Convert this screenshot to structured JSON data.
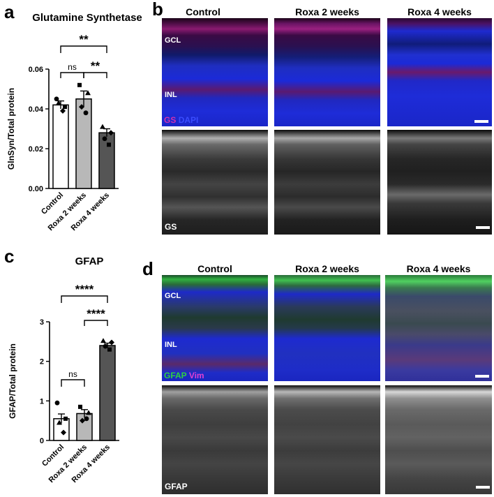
{
  "panels": {
    "a": {
      "letter": "a",
      "title": "Glutamine Synthetase"
    },
    "b": {
      "letter": "b"
    },
    "c": {
      "letter": "c",
      "title": "GFAP"
    },
    "d": {
      "letter": "d"
    }
  },
  "columns": [
    "Control",
    "Roxa 2 weeks",
    "Roxa 4 weeks"
  ],
  "layer_labels": {
    "gcl": "GCL",
    "inl": "INL"
  },
  "stains_b": {
    "gs": "GS",
    "dapi": "DAPI",
    "gs_gray": "GS"
  },
  "stains_d": {
    "gfap": "GFAP",
    "vim": "Vim",
    "gfap_gray": "GFAP"
  },
  "colors": {
    "gs": "#c02090",
    "dapi": "#2a3cff",
    "gfap": "#22c02a",
    "vim": "#d030c0",
    "bar_control": "#ffffff",
    "bar_2wk": "#b8b8b8",
    "bar_4wk": "#555555"
  },
  "chart_data": [
    {
      "type": "bar",
      "title": "Glutamine Synthetase",
      "xlabel": "",
      "ylabel": "GlnSyn/Total protein",
      "categories": [
        "Control",
        "Roxa 2 weeks",
        "Roxa 4 weeks"
      ],
      "values": [
        0.042,
        0.045,
        0.028
      ],
      "errors": [
        0.002,
        0.004,
        0.002
      ],
      "points": [
        [
          0.045,
          0.041,
          0.043,
          0.039
        ],
        [
          0.052,
          0.048,
          0.041,
          0.038
        ],
        [
          0.031,
          0.028,
          0.025,
          0.022
        ]
      ],
      "ylim": [
        0,
        0.06
      ],
      "yticks": [
        "0.00",
        "0.02",
        "0.04",
        "0.06"
      ],
      "significance": [
        {
          "from": 0,
          "to": 2,
          "label": "**"
        },
        {
          "from": 0,
          "to": 1,
          "label": "ns"
        },
        {
          "from": 1,
          "to": 2,
          "label": "**"
        }
      ]
    },
    {
      "type": "bar",
      "title": "GFAP",
      "xlabel": "",
      "ylabel": "GFAP/Total protein",
      "categories": [
        "Control",
        "Roxa 2 weeks",
        "Roxa 4 weeks"
      ],
      "values": [
        0.55,
        0.68,
        2.4
      ],
      "errors": [
        0.12,
        0.1,
        0.06
      ],
      "points": [
        [
          0.95,
          0.55,
          0.45,
          0.2
        ],
        [
          0.85,
          0.7,
          0.5,
          0.55
        ],
        [
          2.52,
          2.48,
          2.38,
          2.3
        ]
      ],
      "ylim": [
        0,
        3
      ],
      "yticks": [
        "0",
        "1",
        "2",
        "3"
      ],
      "significance": [
        {
          "from": 0,
          "to": 2,
          "label": "****"
        },
        {
          "from": 1,
          "to": 2,
          "label": "****"
        },
        {
          "from": 0,
          "to": 1,
          "label": "ns"
        }
      ]
    }
  ]
}
